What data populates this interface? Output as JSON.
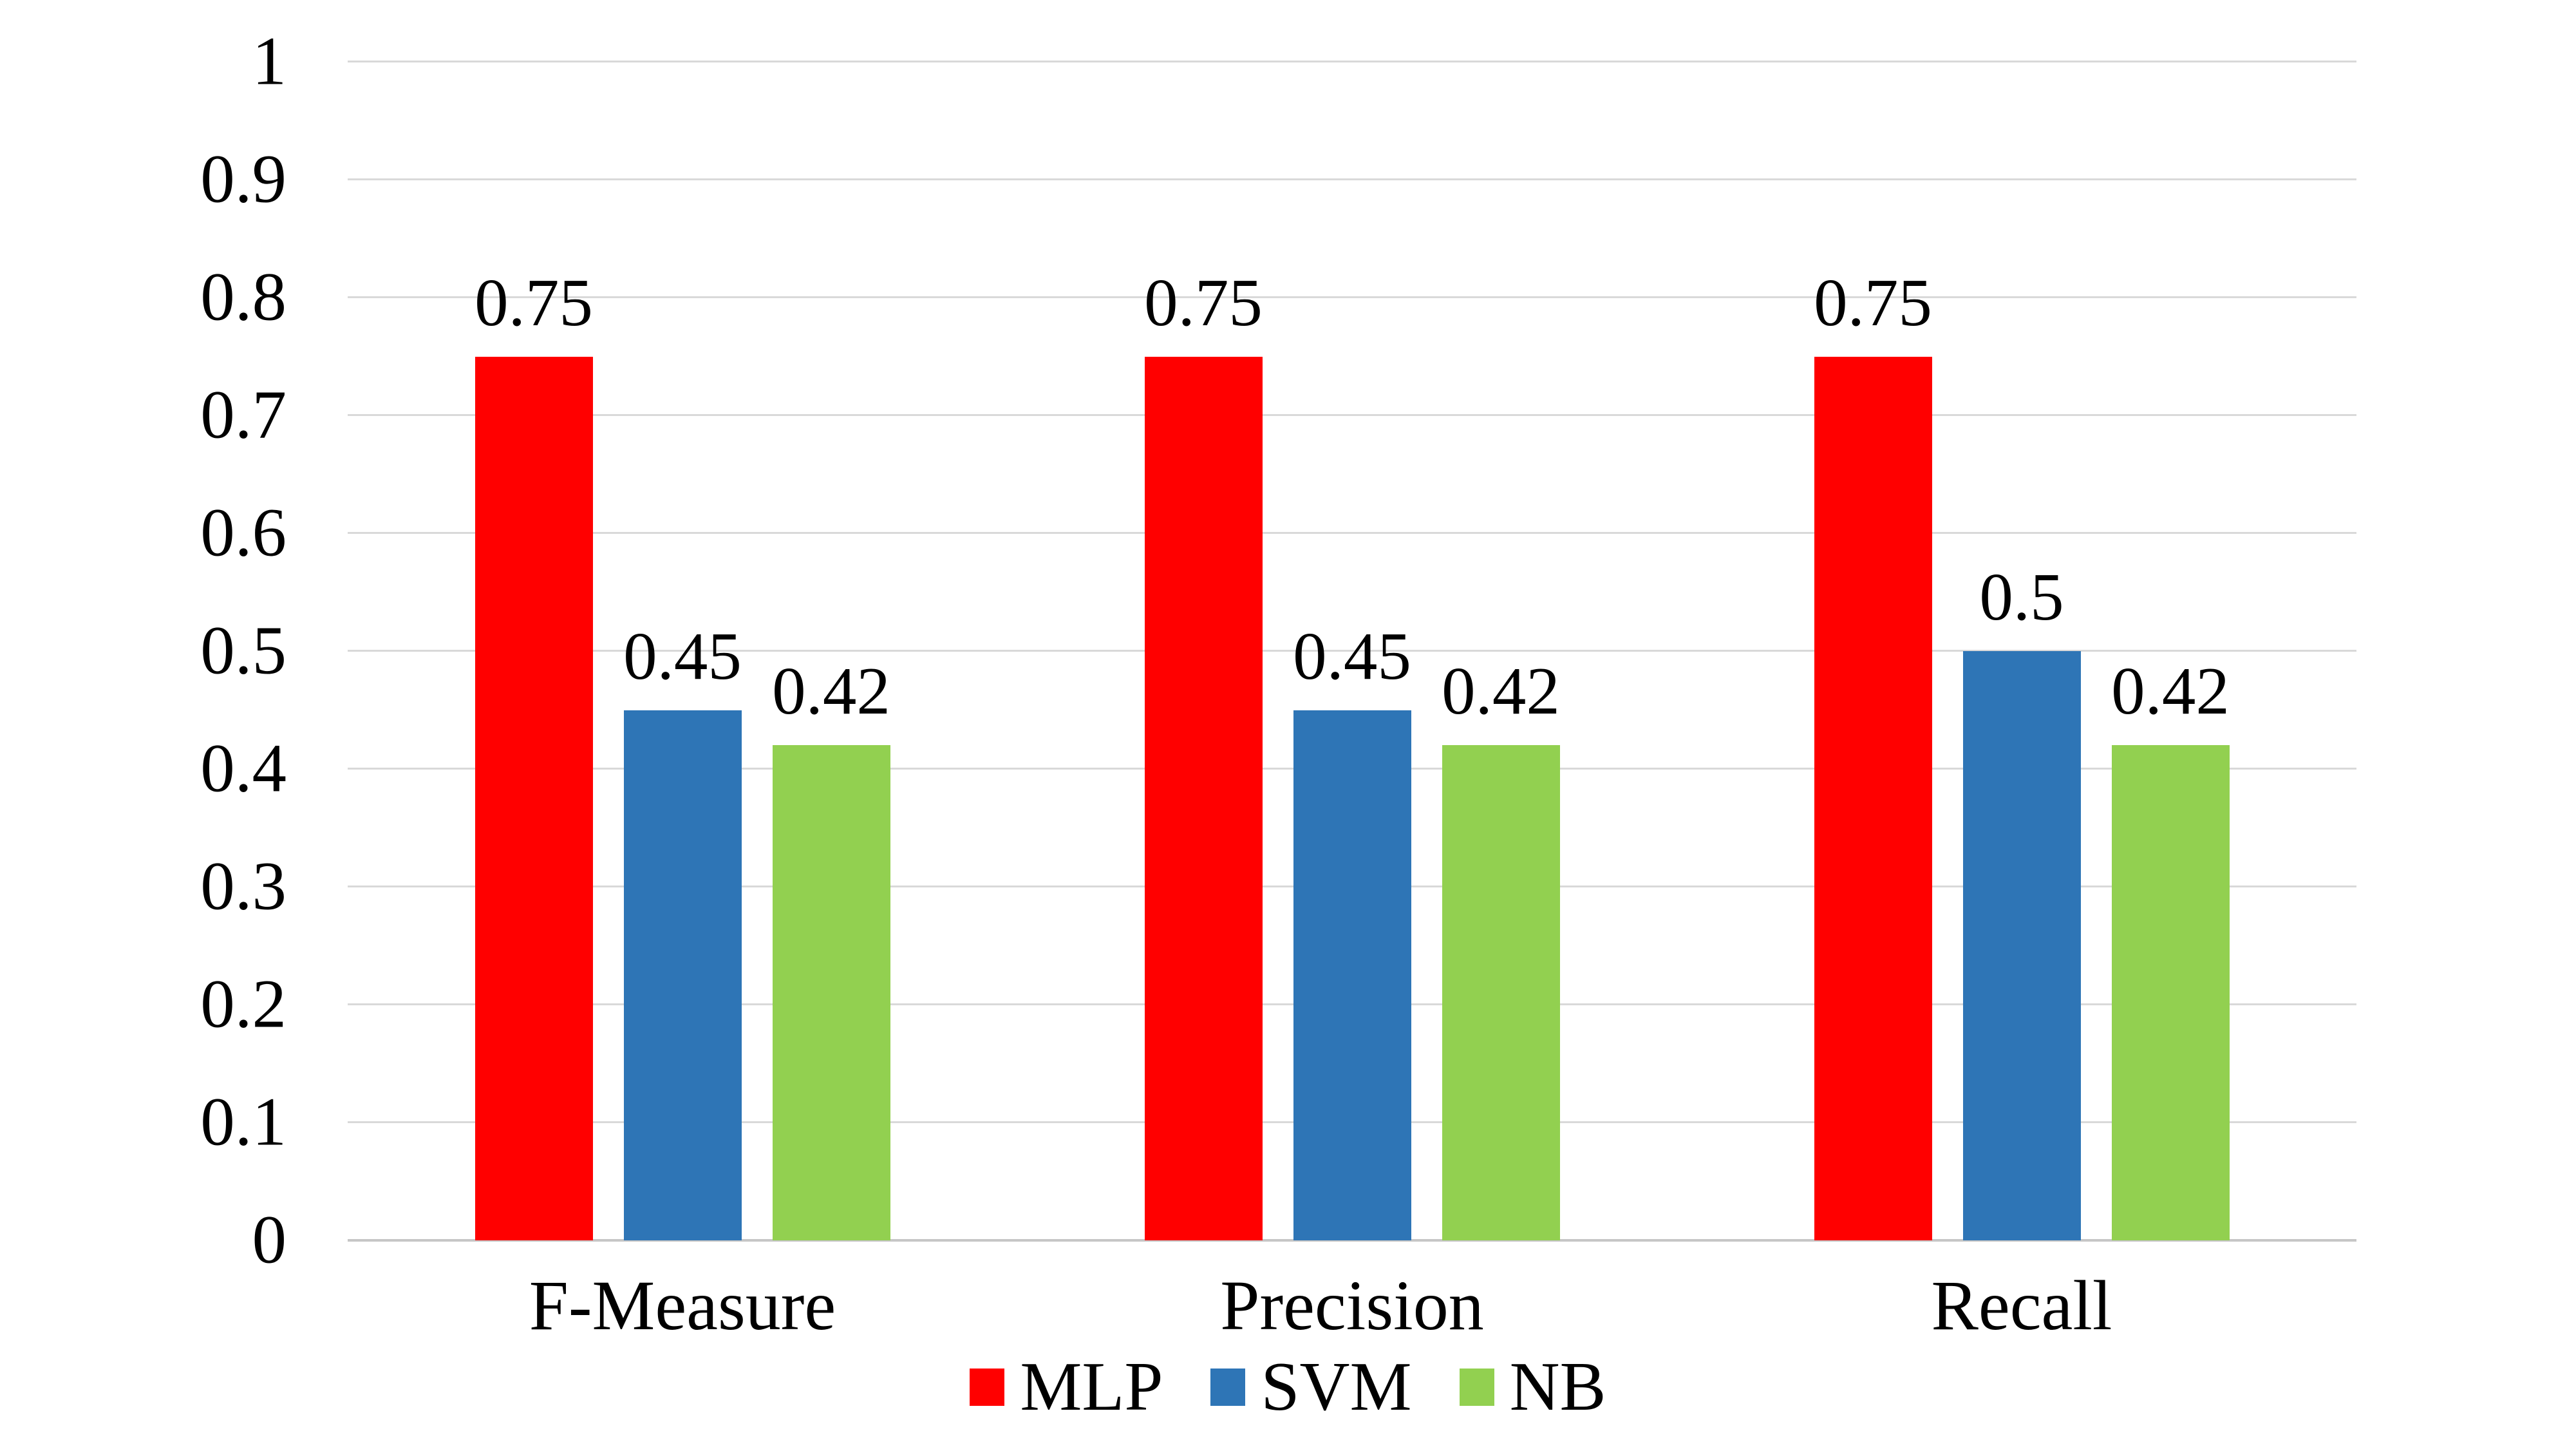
{
  "chart_data": {
    "type": "bar",
    "title": "",
    "xlabel": "",
    "ylabel": "",
    "categories": [
      "F-Measure",
      "Precision",
      "Recall"
    ],
    "series": [
      {
        "name": "MLP",
        "color": "#FF0000",
        "values": [
          0.75,
          0.75,
          0.75
        ],
        "labels": [
          "0.75",
          "0.75",
          "0.75"
        ]
      },
      {
        "name": "SVM",
        "color": "#2E75B6",
        "values": [
          0.45,
          0.45,
          0.5
        ],
        "labels": [
          "0.45",
          "0.45",
          "0.5"
        ]
      },
      {
        "name": "NB",
        "color": "#92D050",
        "values": [
          0.42,
          0.42,
          0.42
        ],
        "labels": [
          "0.42",
          "0.42",
          "0.42"
        ]
      }
    ],
    "ylim": [
      0,
      1
    ],
    "yticks": [
      "1",
      "0.9",
      "0.8",
      "0.7",
      "0.6",
      "0.5",
      "0.4",
      "0.3",
      "0.2",
      "0.1",
      "0"
    ],
    "ytick_values": [
      1,
      0.9,
      0.8,
      0.7,
      0.6,
      0.5,
      0.4,
      0.3,
      0.2,
      0.1,
      0
    ],
    "grid": "horizontal",
    "legend_position": "bottom-center",
    "colors": {
      "background": "#FFFFFF",
      "gridline": "#D9D9D9",
      "axis_line": "#C6C6C6",
      "text": "#000000"
    }
  }
}
